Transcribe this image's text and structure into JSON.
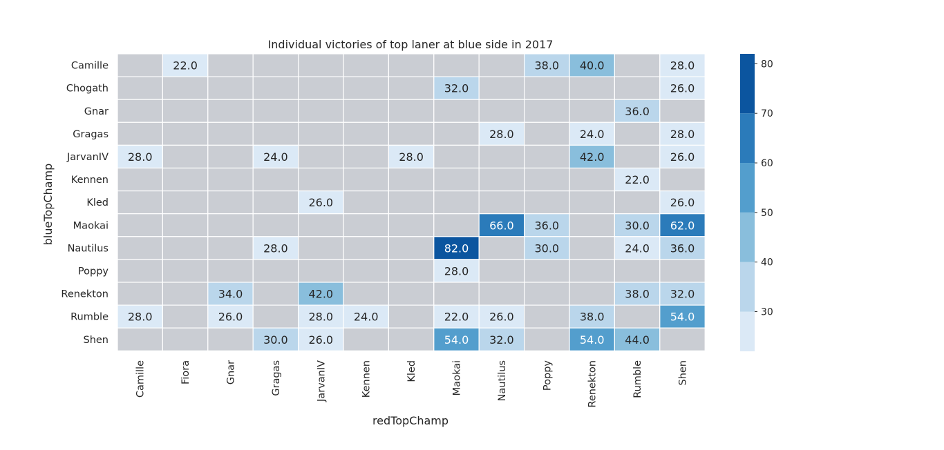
{
  "chart_data": {
    "type": "heatmap",
    "title": "Individual victories of top laner at blue side in 2017",
    "xlabel": "redTopChamp",
    "ylabel": "blueTopChamp",
    "x_categories": [
      "Camille",
      "Fiora",
      "Gnar",
      "Gragas",
      "JarvanIV",
      "Kennen",
      "Kled",
      "Maokai",
      "Nautilus",
      "Poppy",
      "Renekton",
      "Rumble",
      "Shen"
    ],
    "y_categories": [
      "Camille",
      "Chogath",
      "Gnar",
      "Gragas",
      "JarvanIV",
      "Kennen",
      "Kled",
      "Maokai",
      "Nautilus",
      "Poppy",
      "Renekton",
      "Rumble",
      "Shen"
    ],
    "values": [
      [
        null,
        22.0,
        null,
        null,
        null,
        null,
        null,
        null,
        null,
        38.0,
        40.0,
        null,
        28.0
      ],
      [
        null,
        null,
        null,
        null,
        null,
        null,
        null,
        32.0,
        null,
        null,
        null,
        null,
        26.0
      ],
      [
        null,
        null,
        null,
        null,
        null,
        null,
        null,
        null,
        null,
        null,
        null,
        36.0,
        null
      ],
      [
        null,
        null,
        null,
        null,
        null,
        null,
        null,
        null,
        28.0,
        null,
        24.0,
        null,
        28.0
      ],
      [
        28.0,
        null,
        null,
        24.0,
        null,
        null,
        28.0,
        null,
        null,
        null,
        42.0,
        null,
        26.0
      ],
      [
        null,
        null,
        null,
        null,
        null,
        null,
        null,
        null,
        null,
        null,
        null,
        22.0,
        null
      ],
      [
        null,
        null,
        null,
        null,
        26.0,
        null,
        null,
        null,
        null,
        null,
        null,
        null,
        26.0
      ],
      [
        null,
        null,
        null,
        null,
        null,
        null,
        null,
        null,
        66.0,
        36.0,
        null,
        30.0,
        62.0
      ],
      [
        null,
        null,
        null,
        28.0,
        null,
        null,
        null,
        82.0,
        null,
        30.0,
        null,
        24.0,
        36.0
      ],
      [
        null,
        null,
        null,
        null,
        null,
        null,
        null,
        28.0,
        null,
        null,
        null,
        null,
        null
      ],
      [
        null,
        null,
        34.0,
        null,
        42.0,
        null,
        null,
        null,
        null,
        null,
        null,
        38.0,
        32.0
      ],
      [
        28.0,
        null,
        26.0,
        null,
        28.0,
        24.0,
        null,
        22.0,
        26.0,
        null,
        38.0,
        null,
        54.0
      ],
      [
        null,
        null,
        null,
        30.0,
        26.0,
        null,
        null,
        54.0,
        32.0,
        null,
        54.0,
        44.0,
        null
      ]
    ],
    "annotation_format": "0.0",
    "vmin": 22.0,
    "vmax": 82.0,
    "colorbar": {
      "ticks": [
        30,
        40,
        50,
        60,
        70,
        80
      ],
      "colors": [
        "#dbe9f6",
        "#bad6eb",
        "#89bedc",
        "#539ecd",
        "#2b7bba",
        "#0b559f"
      ]
    },
    "missing_color": "#cacdd3",
    "grid_line_color": "#ffffff",
    "annotation_text_dark": "#262626",
    "annotation_text_light": "#ffffff"
  }
}
